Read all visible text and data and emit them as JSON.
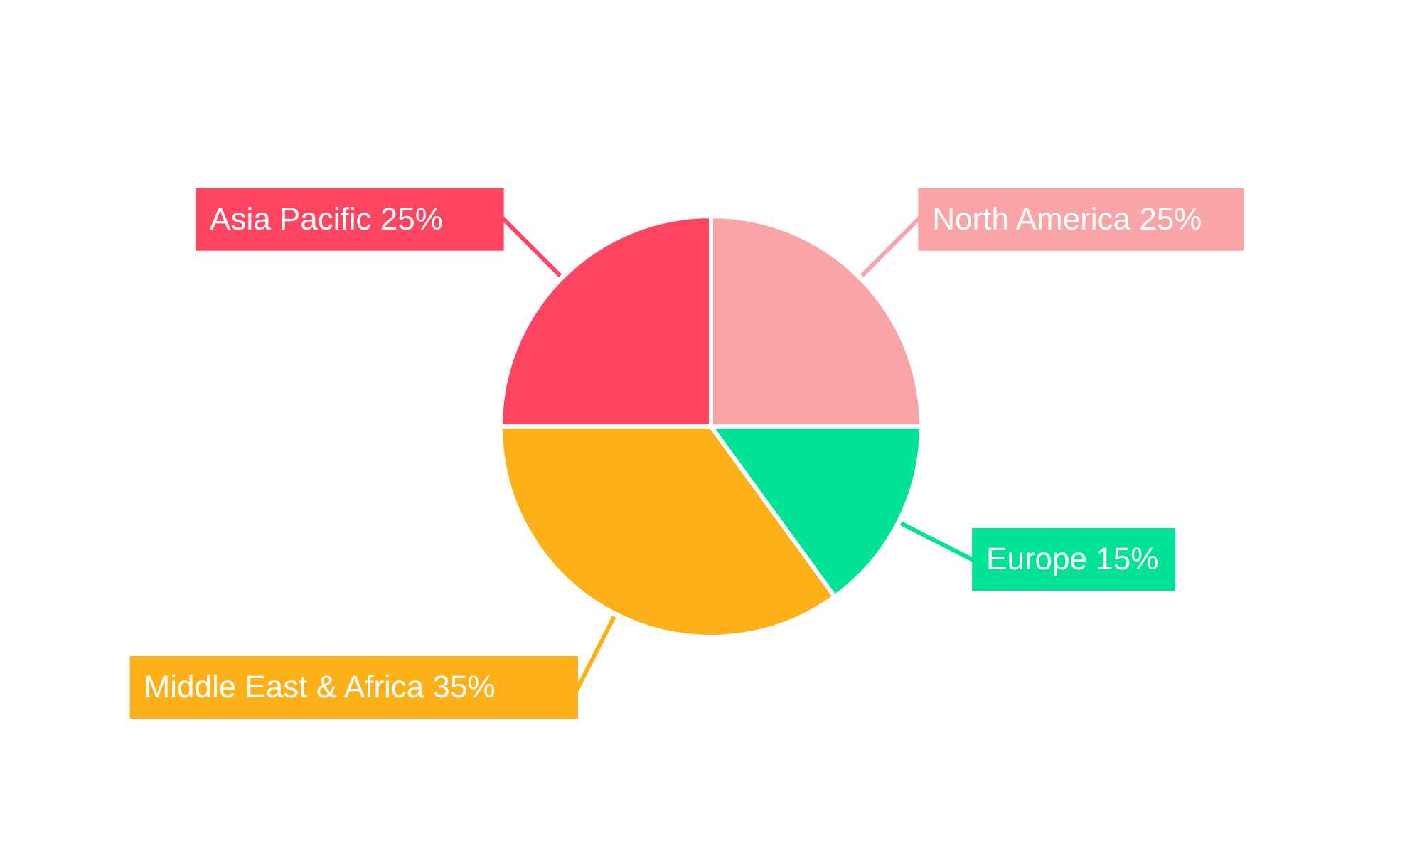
{
  "chart_data": {
    "type": "pie",
    "categories": [
      "North America",
      "Europe",
      "Middle East & Africa",
      "Asia Pacific"
    ],
    "values": [
      25,
      15,
      35,
      25
    ],
    "value_labels": [
      "25%",
      "15%",
      "35%",
      "25%"
    ],
    "colors": [
      "#f9a5a7",
      "#00e396",
      "#feb019",
      "#ff4560"
    ]
  }
}
